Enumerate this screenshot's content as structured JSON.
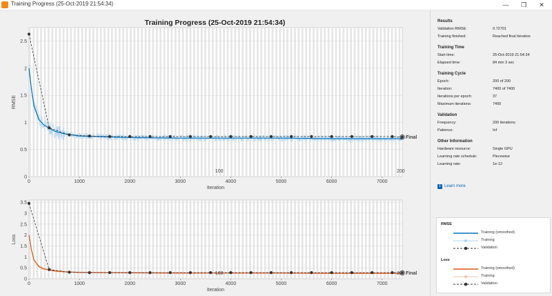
{
  "window": {
    "title": "Training Progress (25-Oct-2019 21:54:34)"
  },
  "chart_title": "Training Progress (25-Oct-2019 21:54:34)",
  "colors": {
    "rmse": "#0072bd",
    "rmse_raw": "#a9d3ef",
    "loss": "#d95319",
    "loss_raw": "#f5c2a8",
    "validation": "#333333",
    "epoch_shade": "#e6e6e6"
  },
  "chart_data": [
    {
      "type": "line",
      "ylabel": "RMSE",
      "xlabel": "Iteration",
      "xlim": [
        0,
        7400
      ],
      "ylim": [
        0,
        2.75
      ],
      "xticks": [
        0,
        1000,
        2000,
        3000,
        4000,
        5000,
        6000,
        7000
      ],
      "yticks": [
        0,
        0.5,
        1,
        1.5,
        2,
        2.5
      ],
      "epoch_labels": [
        {
          "x": 3800,
          "label": "100"
        },
        {
          "x": 7400,
          "label": "200"
        }
      ],
      "final_label": "Final",
      "series": [
        {
          "name": "Training (smoothed)",
          "x": [
            0,
            50,
            100,
            200,
            300,
            500,
            700,
            1000,
            2000,
            3000,
            4000,
            5000,
            6000,
            7000,
            7400
          ],
          "y": [
            2.0,
            1.6,
            1.3,
            1.05,
            0.95,
            0.84,
            0.79,
            0.75,
            0.72,
            0.71,
            0.71,
            0.71,
            0.7,
            0.7,
            0.7
          ]
        },
        {
          "name": "Validation",
          "x": [
            0,
            400,
            800,
            1200,
            1600,
            2000,
            2400,
            2800,
            3200,
            3600,
            4000,
            4400,
            4800,
            5200,
            5600,
            6000,
            6400,
            6800,
            7200,
            7400
          ],
          "y": [
            2.63,
            0.9,
            0.77,
            0.75,
            0.74,
            0.74,
            0.74,
            0.74,
            0.74,
            0.74,
            0.74,
            0.74,
            0.74,
            0.74,
            0.74,
            0.74,
            0.74,
            0.74,
            0.74,
            0.73
          ]
        }
      ]
    },
    {
      "type": "line",
      "ylabel": "Loss",
      "xlabel": "Iteration",
      "xlim": [
        0,
        7400
      ],
      "ylim": [
        0,
        3.6
      ],
      "xticks": [
        0,
        1000,
        2000,
        3000,
        4000,
        5000,
        6000,
        7000
      ],
      "yticks": [
        0,
        0.5,
        1,
        1.5,
        2,
        2.5,
        3,
        3.5
      ],
      "epoch_labels": [
        {
          "x": 3800,
          "label": "100"
        },
        {
          "x": 7400,
          "label": "200"
        }
      ],
      "final_label": "Final",
      "series": [
        {
          "name": "Training (smoothed)",
          "x": [
            0,
            50,
            100,
            200,
            300,
            500,
            700,
            1000,
            2000,
            3000,
            4000,
            5000,
            6000,
            7000,
            7400
          ],
          "y": [
            2.0,
            1.3,
            0.85,
            0.55,
            0.45,
            0.36,
            0.32,
            0.29,
            0.27,
            0.26,
            0.26,
            0.26,
            0.25,
            0.25,
            0.25
          ]
        },
        {
          "name": "Validation",
          "x": [
            0,
            400,
            800,
            1200,
            1600,
            2000,
            2400,
            2800,
            3200,
            3600,
            4000,
            4400,
            4800,
            5200,
            5600,
            6000,
            6400,
            6800,
            7200,
            7400
          ],
          "y": [
            3.45,
            0.42,
            0.3,
            0.28,
            0.28,
            0.28,
            0.28,
            0.28,
            0.28,
            0.28,
            0.28,
            0.28,
            0.28,
            0.28,
            0.28,
            0.28,
            0.28,
            0.28,
            0.28,
            0.27
          ]
        }
      ]
    }
  ],
  "side": {
    "results": {
      "heading": "Results",
      "rows": [
        [
          "Validation RMSE:",
          "0.72701"
        ],
        [
          "Training finished:",
          "Reached final iteration"
        ]
      ]
    },
    "time": {
      "heading": "Training Time",
      "rows": [
        [
          "Start time:",
          "25-Oct-2019 21:54:34"
        ],
        [
          "Elapsed time:",
          "84 min 3 sec"
        ]
      ]
    },
    "cycle": {
      "heading": "Training Cycle",
      "rows": [
        [
          "Epoch:",
          "200 of 200"
        ],
        [
          "Iteration:",
          "7400 of 7400"
        ],
        [
          "Iterations per epoch:",
          "37"
        ],
        [
          "Maximum iterations:",
          "7400"
        ]
      ]
    },
    "validation": {
      "heading": "Validation",
      "rows": [
        [
          "Frequency:",
          "200 iterations"
        ],
        [
          "Patience:",
          "Inf"
        ]
      ]
    },
    "other": {
      "heading": "Other Information",
      "rows": [
        [
          "Hardware resource:",
          "Single GPU"
        ],
        [
          "Learning rate schedule:",
          "Piecewise"
        ],
        [
          "Learning rate:",
          "1e-12"
        ]
      ]
    },
    "learn_more": "Learn more"
  },
  "legend": {
    "rmse_heading": "RMSE",
    "loss_heading": "Loss",
    "rmse_items": [
      "Training (smoothed)",
      "Training",
      "Validation"
    ],
    "loss_items": [
      "Training (smoothed)",
      "Training",
      "Validation"
    ]
  }
}
